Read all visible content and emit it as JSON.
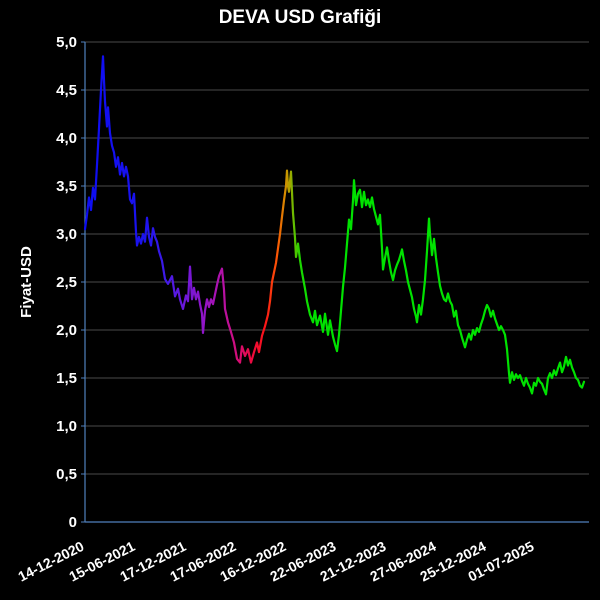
{
  "chart_data": {
    "type": "line",
    "title": "DEVA USD Grafiği",
    "ylabel": "Fiyat-USD",
    "ylim": [
      0,
      5
    ],
    "grid": true,
    "colors": {
      "background": "#000000",
      "axis": "#4f81bd",
      "grid": "#4a4a4a",
      "text": "#ffffff"
    },
    "y_ticks": [
      {
        "value": 5,
        "label": "5,0"
      },
      {
        "value": 4.5,
        "label": "4,5"
      },
      {
        "value": 4,
        "label": "4,0"
      },
      {
        "value": 3.5,
        "label": "3,5"
      },
      {
        "value": 3,
        "label": "3,0"
      },
      {
        "value": 2.5,
        "label": "2,5"
      },
      {
        "value": 2,
        "label": "2,0"
      },
      {
        "value": 1.5,
        "label": "1,5"
      },
      {
        "value": 1,
        "label": "1,0"
      },
      {
        "value": 0.5,
        "label": "0,5"
      },
      {
        "value": 0,
        "label": "0"
      }
    ],
    "x_ticks": [
      {
        "pos": 0.0,
        "label": "14-12-2020"
      },
      {
        "pos": 0.102,
        "label": "15-06-2021"
      },
      {
        "pos": 0.204,
        "label": "17-12-2021"
      },
      {
        "pos": 0.304,
        "label": "17-06-2022"
      },
      {
        "pos": 0.404,
        "label": "16-12-2022"
      },
      {
        "pos": 0.504,
        "label": "22-06-2023"
      },
      {
        "pos": 0.604,
        "label": "21-12-2023"
      },
      {
        "pos": 0.704,
        "label": "27-06-2024"
      },
      {
        "pos": 0.804,
        "label": "25-12-2024"
      },
      {
        "pos": 0.9,
        "label": "01-07-2025"
      }
    ],
    "gradient_stops": [
      [
        0.0,
        "#0d0df2"
      ],
      [
        0.12,
        "#1c13ee"
      ],
      [
        0.16,
        "#3f1ae8"
      ],
      [
        0.2,
        "#6d18da"
      ],
      [
        0.24,
        "#9415c6"
      ],
      [
        0.275,
        "#b411a8"
      ],
      [
        0.305,
        "#d40d78"
      ],
      [
        0.335,
        "#ee0a3c"
      ],
      [
        0.36,
        "#fb1418"
      ],
      [
        0.385,
        "#fc5804"
      ],
      [
        0.402,
        "#cf9200"
      ],
      [
        0.41,
        "#a8a400"
      ],
      [
        0.418,
        "#5fc100"
      ],
      [
        0.432,
        "#18d900"
      ],
      [
        0.46,
        "#00e200"
      ],
      [
        1.0,
        "#00e200"
      ]
    ],
    "series": [
      {
        "name": "DEVA USD",
        "points": [
          [
            0.0,
            3.05
          ],
          [
            0.004,
            3.2
          ],
          [
            0.008,
            3.38
          ],
          [
            0.012,
            3.25
          ],
          [
            0.016,
            3.48
          ],
          [
            0.02,
            3.36
          ],
          [
            0.024,
            3.72
          ],
          [
            0.028,
            4.1
          ],
          [
            0.032,
            4.5
          ],
          [
            0.036,
            4.85
          ],
          [
            0.038,
            4.6
          ],
          [
            0.04,
            4.38
          ],
          [
            0.044,
            4.12
          ],
          [
            0.046,
            4.32
          ],
          [
            0.05,
            4.05
          ],
          [
            0.054,
            3.92
          ],
          [
            0.058,
            3.85
          ],
          [
            0.062,
            3.7
          ],
          [
            0.066,
            3.8
          ],
          [
            0.07,
            3.62
          ],
          [
            0.074,
            3.74
          ],
          [
            0.078,
            3.6
          ],
          [
            0.082,
            3.7
          ],
          [
            0.086,
            3.6
          ],
          [
            0.09,
            3.36
          ],
          [
            0.094,
            3.32
          ],
          [
            0.098,
            3.42
          ],
          [
            0.102,
            3.02
          ],
          [
            0.104,
            2.88
          ],
          [
            0.108,
            2.97
          ],
          [
            0.112,
            2.9
          ],
          [
            0.116,
            3.0
          ],
          [
            0.12,
            2.92
          ],
          [
            0.124,
            3.17
          ],
          [
            0.128,
            2.97
          ],
          [
            0.132,
            2.88
          ],
          [
            0.136,
            3.06
          ],
          [
            0.14,
            2.97
          ],
          [
            0.144,
            2.92
          ],
          [
            0.148,
            2.82
          ],
          [
            0.154,
            2.72
          ],
          [
            0.16,
            2.53
          ],
          [
            0.166,
            2.48
          ],
          [
            0.174,
            2.56
          ],
          [
            0.18,
            2.35
          ],
          [
            0.186,
            2.43
          ],
          [
            0.19,
            2.32
          ],
          [
            0.196,
            2.22
          ],
          [
            0.202,
            2.36
          ],
          [
            0.206,
            2.3
          ],
          [
            0.21,
            2.66
          ],
          [
            0.214,
            2.32
          ],
          [
            0.218,
            2.44
          ],
          [
            0.222,
            2.32
          ],
          [
            0.226,
            2.4
          ],
          [
            0.23,
            2.27
          ],
          [
            0.234,
            2.17
          ],
          [
            0.236,
            1.97
          ],
          [
            0.24,
            2.2
          ],
          [
            0.244,
            2.32
          ],
          [
            0.248,
            2.24
          ],
          [
            0.252,
            2.32
          ],
          [
            0.256,
            2.27
          ],
          [
            0.26,
            2.37
          ],
          [
            0.264,
            2.47
          ],
          [
            0.268,
            2.56
          ],
          [
            0.274,
            2.64
          ],
          [
            0.278,
            2.42
          ],
          [
            0.28,
            2.22
          ],
          [
            0.286,
            2.08
          ],
          [
            0.292,
            1.98
          ],
          [
            0.298,
            1.87
          ],
          [
            0.304,
            1.7
          ],
          [
            0.31,
            1.66
          ],
          [
            0.314,
            1.83
          ],
          [
            0.32,
            1.73
          ],
          [
            0.326,
            1.8
          ],
          [
            0.332,
            1.66
          ],
          [
            0.338,
            1.77
          ],
          [
            0.344,
            1.87
          ],
          [
            0.348,
            1.77
          ],
          [
            0.354,
            1.94
          ],
          [
            0.36,
            2.04
          ],
          [
            0.366,
            2.16
          ],
          [
            0.37,
            2.3
          ],
          [
            0.374,
            2.5
          ],
          [
            0.378,
            2.6
          ],
          [
            0.382,
            2.7
          ],
          [
            0.386,
            2.85
          ],
          [
            0.39,
            3.0
          ],
          [
            0.394,
            3.18
          ],
          [
            0.398,
            3.35
          ],
          [
            0.402,
            3.5
          ],
          [
            0.404,
            3.66
          ],
          [
            0.406,
            3.5
          ],
          [
            0.408,
            3.44
          ],
          [
            0.412,
            3.65
          ],
          [
            0.416,
            3.22
          ],
          [
            0.42,
            2.96
          ],
          [
            0.422,
            2.76
          ],
          [
            0.426,
            2.9
          ],
          [
            0.43,
            2.73
          ],
          [
            0.434,
            2.6
          ],
          [
            0.44,
            2.43
          ],
          [
            0.444,
            2.3
          ],
          [
            0.45,
            2.16
          ],
          [
            0.456,
            2.08
          ],
          [
            0.46,
            2.2
          ],
          [
            0.464,
            2.05
          ],
          [
            0.47,
            2.15
          ],
          [
            0.476,
            1.98
          ],
          [
            0.48,
            2.17
          ],
          [
            0.486,
            1.95
          ],
          [
            0.49,
            2.1
          ],
          [
            0.496,
            1.93
          ],
          [
            0.5,
            1.85
          ],
          [
            0.504,
            1.78
          ],
          [
            0.508,
            1.95
          ],
          [
            0.512,
            2.2
          ],
          [
            0.516,
            2.45
          ],
          [
            0.52,
            2.65
          ],
          [
            0.524,
            2.9
          ],
          [
            0.528,
            3.15
          ],
          [
            0.532,
            3.05
          ],
          [
            0.536,
            3.35
          ],
          [
            0.538,
            3.56
          ],
          [
            0.542,
            3.3
          ],
          [
            0.546,
            3.42
          ],
          [
            0.55,
            3.46
          ],
          [
            0.554,
            3.28
          ],
          [
            0.558,
            3.44
          ],
          [
            0.562,
            3.3
          ],
          [
            0.566,
            3.36
          ],
          [
            0.57,
            3.28
          ],
          [
            0.574,
            3.38
          ],
          [
            0.578,
            3.26
          ],
          [
            0.582,
            3.18
          ],
          [
            0.586,
            3.1
          ],
          [
            0.59,
            3.2
          ],
          [
            0.594,
            2.85
          ],
          [
            0.596,
            2.63
          ],
          [
            0.6,
            2.75
          ],
          [
            0.604,
            2.86
          ],
          [
            0.608,
            2.72
          ],
          [
            0.612,
            2.6
          ],
          [
            0.616,
            2.52
          ],
          [
            0.62,
            2.62
          ],
          [
            0.624,
            2.68
          ],
          [
            0.628,
            2.73
          ],
          [
            0.632,
            2.8
          ],
          [
            0.634,
            2.84
          ],
          [
            0.638,
            2.72
          ],
          [
            0.642,
            2.62
          ],
          [
            0.646,
            2.5
          ],
          [
            0.65,
            2.42
          ],
          [
            0.654,
            2.34
          ],
          [
            0.658,
            2.22
          ],
          [
            0.662,
            2.14
          ],
          [
            0.664,
            2.08
          ],
          [
            0.668,
            2.26
          ],
          [
            0.672,
            2.16
          ],
          [
            0.676,
            2.32
          ],
          [
            0.68,
            2.52
          ],
          [
            0.684,
            2.82
          ],
          [
            0.688,
            3.16
          ],
          [
            0.69,
            3.0
          ],
          [
            0.692,
            2.9
          ],
          [
            0.694,
            2.78
          ],
          [
            0.698,
            2.95
          ],
          [
            0.702,
            2.75
          ],
          [
            0.706,
            2.6
          ],
          [
            0.71,
            2.46
          ],
          [
            0.714,
            2.38
          ],
          [
            0.718,
            2.32
          ],
          [
            0.722,
            2.3
          ],
          [
            0.726,
            2.38
          ],
          [
            0.73,
            2.3
          ],
          [
            0.734,
            2.26
          ],
          [
            0.738,
            2.14
          ],
          [
            0.742,
            2.2
          ],
          [
            0.746,
            2.05
          ],
          [
            0.75,
            2.0
          ],
          [
            0.754,
            1.92
          ],
          [
            0.76,
            1.82
          ],
          [
            0.764,
            1.9
          ],
          [
            0.768,
            1.96
          ],
          [
            0.772,
            1.9
          ],
          [
            0.776,
            2.0
          ],
          [
            0.78,
            1.95
          ],
          [
            0.784,
            2.02
          ],
          [
            0.788,
            1.98
          ],
          [
            0.792,
            2.06
          ],
          [
            0.796,
            2.12
          ],
          [
            0.8,
            2.2
          ],
          [
            0.804,
            2.26
          ],
          [
            0.808,
            2.22
          ],
          [
            0.812,
            2.14
          ],
          [
            0.816,
            2.2
          ],
          [
            0.82,
            2.12
          ],
          [
            0.824,
            2.06
          ],
          [
            0.828,
            2.0
          ],
          [
            0.832,
            2.04
          ],
          [
            0.836,
            2.0
          ],
          [
            0.84,
            1.95
          ],
          [
            0.844,
            1.8
          ],
          [
            0.848,
            1.55
          ],
          [
            0.85,
            1.45
          ],
          [
            0.854,
            1.56
          ],
          [
            0.858,
            1.48
          ],
          [
            0.862,
            1.54
          ],
          [
            0.866,
            1.5
          ],
          [
            0.87,
            1.53
          ],
          [
            0.874,
            1.47
          ],
          [
            0.878,
            1.42
          ],
          [
            0.882,
            1.5
          ],
          [
            0.886,
            1.44
          ],
          [
            0.89,
            1.4
          ],
          [
            0.894,
            1.34
          ],
          [
            0.898,
            1.45
          ],
          [
            0.902,
            1.42
          ],
          [
            0.906,
            1.5
          ],
          [
            0.91,
            1.46
          ],
          [
            0.914,
            1.44
          ],
          [
            0.918,
            1.38
          ],
          [
            0.922,
            1.33
          ],
          [
            0.926,
            1.5
          ],
          [
            0.93,
            1.55
          ],
          [
            0.934,
            1.5
          ],
          [
            0.938,
            1.58
          ],
          [
            0.942,
            1.53
          ],
          [
            0.946,
            1.6
          ],
          [
            0.95,
            1.66
          ],
          [
            0.954,
            1.56
          ],
          [
            0.958,
            1.62
          ],
          [
            0.962,
            1.72
          ],
          [
            0.966,
            1.63
          ],
          [
            0.97,
            1.69
          ],
          [
            0.974,
            1.61
          ],
          [
            0.978,
            1.56
          ],
          [
            0.982,
            1.5
          ],
          [
            0.986,
            1.48
          ],
          [
            0.99,
            1.42
          ],
          [
            0.994,
            1.4
          ],
          [
            0.998,
            1.46
          ]
        ]
      }
    ]
  }
}
